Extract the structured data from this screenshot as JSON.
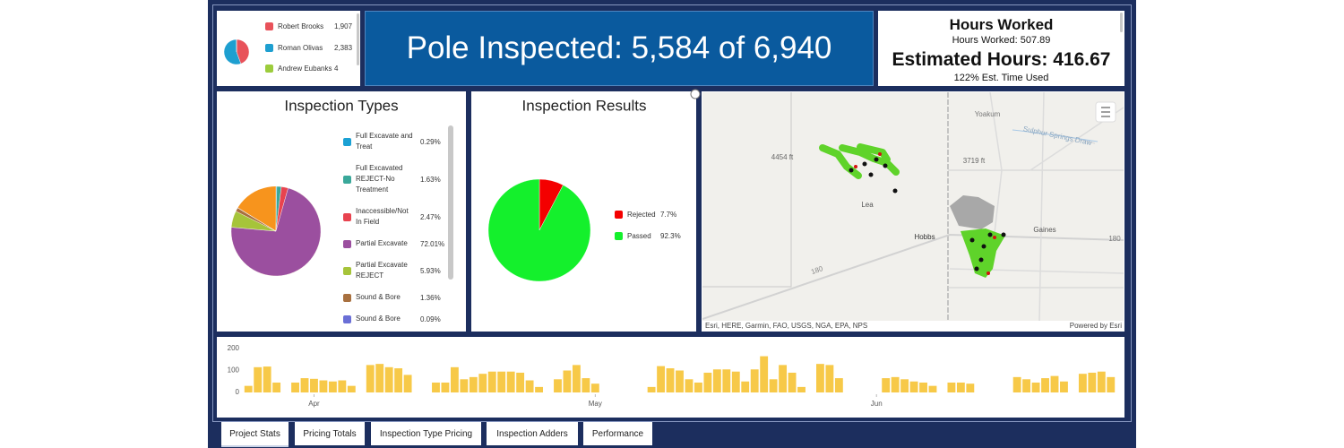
{
  "chart_data": [
    {
      "type": "pie",
      "categories": [
        "Robert Brooks",
        "Roman Olivas",
        "Andrew Eubanks"
      ],
      "values": [
        1907,
        2383,
        4
      ],
      "value_labels": [
        "1,907",
        "2,383",
        "4"
      ],
      "colors": [
        "#e8525a",
        "#1e9fd0",
        "#9ccc3c"
      ]
    },
    {
      "type": "pie",
      "title": "Inspection Types",
      "categories": [
        "Full Excavate and Treat",
        "Full Excavated REJECT-No Treatment",
        "Inaccessible/Not In Field",
        "Partial Excavate",
        "Partial Excavate REJECT",
        "Sound & Bore",
        "Sound & Bore"
      ],
      "values": [
        0.29,
        1.63,
        2.47,
        72.01,
        5.93,
        1.36,
        0.09
      ],
      "value_labels": [
        "0.29%",
        "1.63%",
        "2.47%",
        "72.01%",
        "5.93%",
        "1.36%",
        "0.09%"
      ],
      "colors": [
        "#1ba1d4",
        "#3aa89a",
        "#e8434f",
        "#9b4f9f",
        "#a6c43a",
        "#a8703f",
        "#6a6fd6"
      ]
    },
    {
      "type": "pie",
      "title": "Inspection Results",
      "categories": [
        "Rejected",
        "Passed"
      ],
      "values": [
        7.7,
        92.3
      ],
      "value_labels": [
        "7.7%",
        "92.3%"
      ],
      "colors": [
        "#f40000",
        "#14f02c"
      ]
    },
    {
      "type": "bar",
      "values": [
        30,
        115,
        118,
        45,
        0,
        45,
        65,
        62,
        55,
        50,
        55,
        30,
        0,
        125,
        130,
        115,
        110,
        80,
        0,
        0,
        45,
        45,
        115,
        60,
        70,
        85,
        95,
        95,
        95,
        90,
        55,
        25,
        0,
        60,
        100,
        125,
        65,
        40,
        0,
        0,
        0,
        0,
        0,
        25,
        120,
        110,
        100,
        60,
        45,
        90,
        105,
        105,
        95,
        50,
        105,
        165,
        60,
        125,
        90,
        25,
        0,
        130,
        125,
        65,
        0,
        0,
        0,
        0,
        65,
        70,
        60,
        50,
        45,
        30,
        0,
        45,
        45,
        40,
        0,
        0,
        0,
        0,
        70,
        60,
        45,
        65,
        75,
        50,
        0,
        85,
        90,
        95,
        70
      ],
      "color": "#f7c948",
      "ylim": [
        0,
        200
      ],
      "yticks": [
        0,
        100,
        200
      ],
      "xticks": [
        {
          "value": 7,
          "label": "Apr"
        },
        {
          "value": 37,
          "label": "May"
        },
        {
          "value": 67,
          "label": "Jun"
        }
      ],
      "grid": false
    }
  ],
  "banner": {
    "text": "Pole Inspected: 5,584 of 6,940"
  },
  "hours": {
    "title": "Hours Worked",
    "worked": "Hours Worked: 507.89",
    "estimated": "Estimated Hours: 416.67",
    "used": "122% Est. Time Used"
  },
  "map": {
    "labels": [
      "Yoakum",
      "Sulphur Springs Draw",
      "4454 ft",
      "3719 ft",
      "Lea",
      "Hobbs",
      "Gaines",
      "180",
      "180"
    ],
    "attribution": "Esri, HERE, Garmin, FAO, USGS, NGA, EPA, NPS",
    "powered": "Powered by Esri"
  },
  "tabs": [
    "Project Stats",
    "Pricing Totals",
    "Inspection Type Pricing",
    "Inspection Adders",
    "Performance"
  ]
}
